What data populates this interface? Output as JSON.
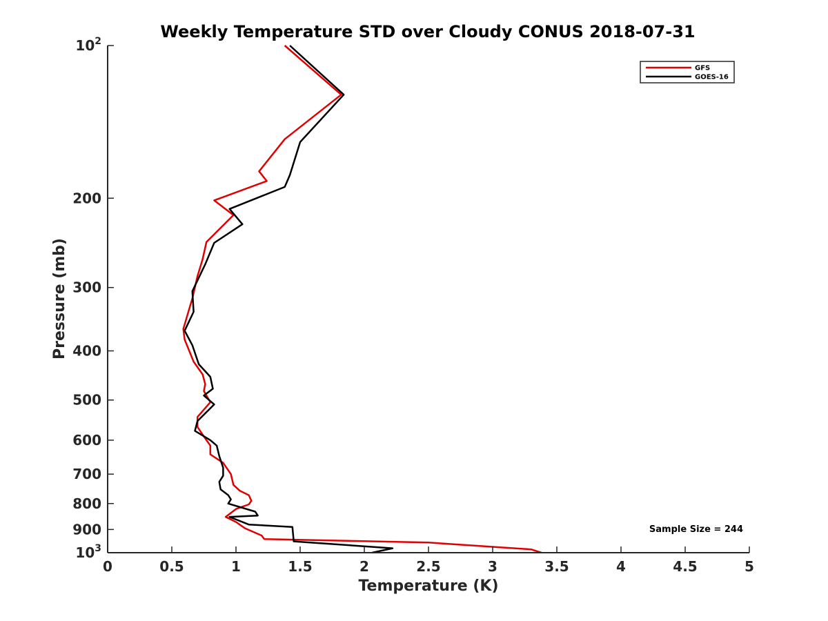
{
  "chart_data": {
    "type": "line",
    "title": "Weekly Temperature STD over Cloudy CONUS 2018-07-31",
    "xlabel": "Temperature (K)",
    "ylabel": "Pressure (mb)",
    "xlim": [
      0,
      5
    ],
    "ylim": [
      100,
      1000
    ],
    "yscale": "log",
    "y_reversed": true,
    "grid": false,
    "legend_position": "top-right",
    "xticks": [
      {
        "value": 0,
        "label": "0"
      },
      {
        "value": 0.5,
        "label": "0.5"
      },
      {
        "value": 1,
        "label": "1"
      },
      {
        "value": 1.5,
        "label": "1.5"
      },
      {
        "value": 2,
        "label": "2"
      },
      {
        "value": 2.5,
        "label": "2.5"
      },
      {
        "value": 3,
        "label": "3"
      },
      {
        "value": 3.5,
        "label": "3.5"
      },
      {
        "value": 4,
        "label": "4"
      },
      {
        "value": 4.5,
        "label": "4.5"
      },
      {
        "value": 5,
        "label": "5"
      }
    ],
    "yticks": [
      {
        "value": 100,
        "label": "10",
        "sup": "2"
      },
      {
        "value": 200,
        "label": "200",
        "sup": ""
      },
      {
        "value": 300,
        "label": "300",
        "sup": ""
      },
      {
        "value": 400,
        "label": "400",
        "sup": ""
      },
      {
        "value": 500,
        "label": "500",
        "sup": ""
      },
      {
        "value": 600,
        "label": "600",
        "sup": ""
      },
      {
        "value": 700,
        "label": "700",
        "sup": ""
      },
      {
        "value": 800,
        "label": "800",
        "sup": ""
      },
      {
        "value": 900,
        "label": "900",
        "sup": ""
      },
      {
        "value": 1000,
        "label": "10",
        "sup": "3"
      }
    ],
    "annotation": "Sample Size = 244",
    "series": [
      {
        "name": "GFS",
        "color": "#e00000",
        "points": [
          [
            1.38,
            100
          ],
          [
            1.82,
            125
          ],
          [
            1.38,
            153
          ],
          [
            1.18,
            177
          ],
          [
            1.24,
            185
          ],
          [
            0.83,
            202
          ],
          [
            0.98,
            216
          ],
          [
            0.77,
            244
          ],
          [
            0.74,
            264
          ],
          [
            0.7,
            285
          ],
          [
            0.66,
            315
          ],
          [
            0.59,
            362
          ],
          [
            0.6,
            380
          ],
          [
            0.67,
            420
          ],
          [
            0.74,
            445
          ],
          [
            0.76,
            465
          ],
          [
            0.75,
            480
          ],
          [
            0.8,
            505
          ],
          [
            0.7,
            540
          ],
          [
            0.7,
            565
          ],
          [
            0.75,
            590
          ],
          [
            0.8,
            615
          ],
          [
            0.8,
            640
          ],
          [
            0.9,
            665
          ],
          [
            0.96,
            700
          ],
          [
            0.98,
            735
          ],
          [
            1.03,
            755
          ],
          [
            1.1,
            770
          ],
          [
            1.12,
            790
          ],
          [
            1.1,
            803
          ],
          [
            1.0,
            820
          ],
          [
            0.92,
            850
          ],
          [
            1.0,
            870
          ],
          [
            1.07,
            895
          ],
          [
            1.2,
            925
          ],
          [
            1.22,
            940
          ],
          [
            2.5,
            955
          ],
          [
            3.3,
            985
          ],
          [
            3.38,
            1000
          ]
        ]
      },
      {
        "name": "GOES-16",
        "color": "#000000",
        "points": [
          [
            1.42,
            100
          ],
          [
            1.84,
            125
          ],
          [
            1.5,
            155
          ],
          [
            1.42,
            180
          ],
          [
            1.38,
            190
          ],
          [
            0.95,
            210
          ],
          [
            1.05,
            225
          ],
          [
            0.83,
            245
          ],
          [
            0.76,
            270
          ],
          [
            0.66,
            305
          ],
          [
            0.67,
            335
          ],
          [
            0.6,
            365
          ],
          [
            0.66,
            390
          ],
          [
            0.71,
            425
          ],
          [
            0.8,
            450
          ],
          [
            0.82,
            475
          ],
          [
            0.75,
            490
          ],
          [
            0.83,
            510
          ],
          [
            0.7,
            550
          ],
          [
            0.68,
            575
          ],
          [
            0.8,
            600
          ],
          [
            0.85,
            615
          ],
          [
            0.87,
            645
          ],
          [
            0.9,
            680
          ],
          [
            0.9,
            705
          ],
          [
            0.87,
            725
          ],
          [
            0.88,
            750
          ],
          [
            0.94,
            770
          ],
          [
            0.96,
            785
          ],
          [
            0.94,
            800
          ],
          [
            1.15,
            830
          ],
          [
            1.17,
            845
          ],
          [
            0.95,
            850
          ],
          [
            1.1,
            880
          ],
          [
            1.44,
            890
          ],
          [
            1.45,
            950
          ],
          [
            2.22,
            980
          ],
          [
            2.06,
            1000
          ]
        ]
      }
    ]
  }
}
